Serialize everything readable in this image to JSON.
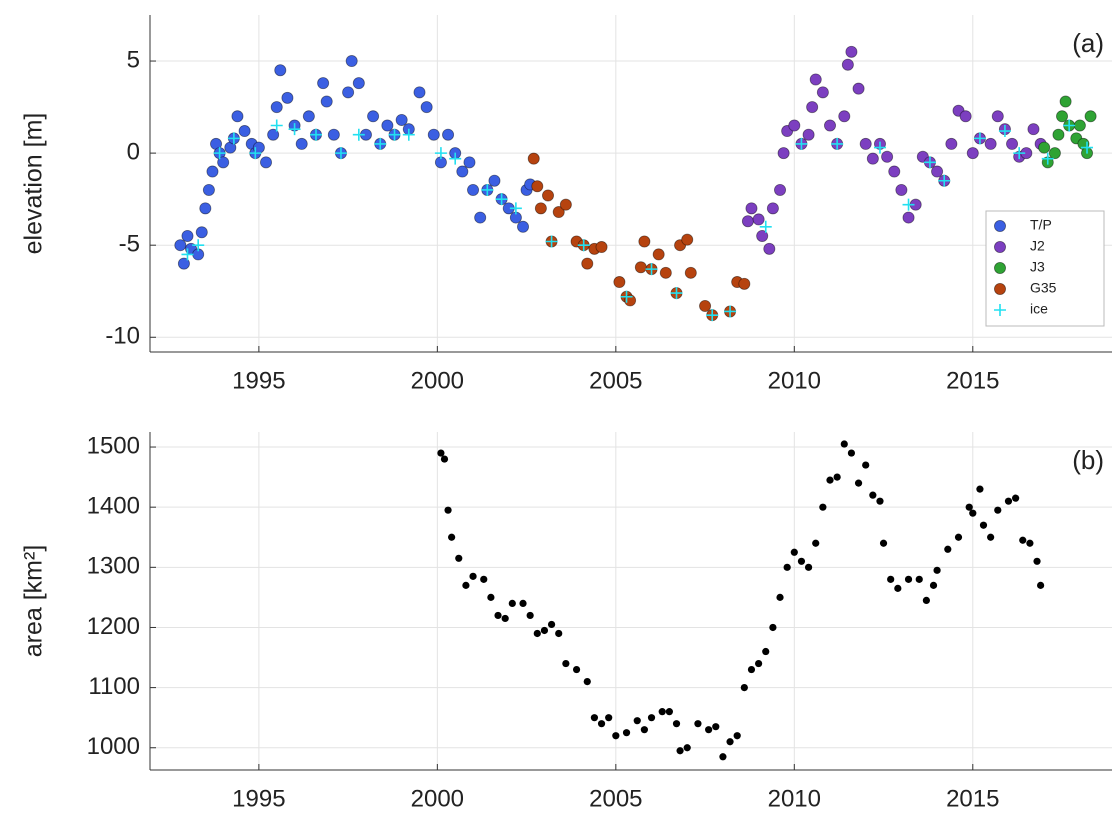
{
  "chart_data": [
    {
      "type": "scatter",
      "y_label": "elevation [m]",
      "annotation": "(a)",
      "xlim": [
        1991.95,
        2018.9
      ],
      "ylim": [
        -10.8,
        7.5
      ],
      "xticks": [
        1995,
        2000,
        2005,
        2010,
        2015
      ],
      "yticks": [
        -10,
        -5,
        0,
        5
      ],
      "grid": true,
      "legend": "lower right",
      "series": [
        {
          "name": "T/P",
          "color": "#3b5fe2",
          "marker": "circle",
          "x": [
            1992.8,
            1992.9,
            1993.0,
            1993.1,
            1993.3,
            1993.4,
            1993.5,
            1993.6,
            1993.7,
            1993.8,
            1993.9,
            1994.0,
            1994.2,
            1994.3,
            1994.4,
            1994.6,
            1994.8,
            1994.9,
            1995.0,
            1995.2,
            1995.4,
            1995.5,
            1995.6,
            1995.8,
            1996.0,
            1996.2,
            1996.4,
            1996.6,
            1996.8,
            1996.9,
            1997.1,
            1997.3,
            1997.5,
            1997.6,
            1997.8,
            1998.0,
            1998.2,
            1998.4,
            1998.6,
            1998.8,
            1999.0,
            1999.2,
            1999.5,
            1999.7,
            1999.9,
            2000.1,
            2000.3,
            2000.5,
            2000.7,
            2000.9,
            2001.0,
            2001.2,
            2001.4,
            2001.6,
            2001.8,
            2002.0,
            2002.2,
            2002.4,
            2002.5,
            2002.6
          ],
          "values": [
            -5,
            -6,
            -4.5,
            -5.2,
            -5.5,
            -4.3,
            -3,
            -2,
            -1,
            0.5,
            0,
            -0.5,
            0.3,
            0.8,
            2,
            1.2,
            0.5,
            0,
            0.3,
            -0.5,
            1,
            2.5,
            4.5,
            3,
            1.5,
            0.5,
            2,
            1,
            3.8,
            2.8,
            1,
            0,
            3.3,
            5,
            3.8,
            1,
            2,
            0.5,
            1.5,
            1,
            1.8,
            1.3,
            3.3,
            2.5,
            1,
            -0.5,
            1,
            0,
            -1,
            -0.5,
            -2,
            -3.5,
            -2,
            -1.5,
            -2.5,
            -3,
            -3.5,
            -4,
            -2,
            -1.7
          ]
        },
        {
          "name": "J2",
          "color": "#7c3fc0",
          "marker": "circle",
          "x": [
            2008.7,
            2008.8,
            2009.0,
            2009.1,
            2009.3,
            2009.4,
            2009.6,
            2009.7,
            2009.8,
            2010.0,
            2010.2,
            2010.4,
            2010.5,
            2010.6,
            2010.8,
            2011.0,
            2011.2,
            2011.4,
            2011.5,
            2011.6,
            2011.8,
            2012.0,
            2012.2,
            2012.4,
            2012.6,
            2012.8,
            2013.0,
            2013.2,
            2013.4,
            2013.6,
            2013.8,
            2014.0,
            2014.2,
            2014.4,
            2014.6,
            2014.8,
            2015.0,
            2015.2,
            2015.5,
            2015.7,
            2015.9,
            2016.1,
            2016.3,
            2016.5,
            2016.7,
            2016.9
          ],
          "values": [
            -3.7,
            -3,
            -3.6,
            -4.5,
            -5.2,
            -3,
            -2,
            0,
            1.2,
            1.5,
            0.5,
            1,
            2.5,
            4,
            3.3,
            1.5,
            0.5,
            2,
            4.8,
            5.5,
            3.5,
            0.5,
            -0.3,
            0.5,
            -0.2,
            -1,
            -2,
            -3.5,
            -2.8,
            -0.2,
            -0.5,
            -1,
            -1.5,
            0.5,
            2.3,
            2,
            0,
            0.8,
            0.5,
            2,
            1.3,
            0.5,
            -0.2,
            0,
            1.3,
            0.5
          ]
        },
        {
          "name": "J3",
          "color": "#2fa334",
          "marker": "circle",
          "x": [
            2017.0,
            2017.1,
            2017.3,
            2017.4,
            2017.5,
            2017.6,
            2017.7,
            2017.9,
            2018.0,
            2018.1,
            2018.2,
            2018.3
          ],
          "values": [
            0.3,
            -0.5,
            0,
            1,
            2,
            2.8,
            1.5,
            0.8,
            1.5,
            0.5,
            0,
            2
          ]
        },
        {
          "name": "G35",
          "color": "#b6430f",
          "marker": "circle",
          "x": [
            2002.7,
            2002.8,
            2002.9,
            2003.1,
            2003.2,
            2003.4,
            2003.6,
            2003.9,
            2004.1,
            2004.2,
            2004.4,
            2004.6,
            2005.1,
            2005.3,
            2005.4,
            2005.7,
            2005.8,
            2006.0,
            2006.2,
            2006.4,
            2006.7,
            2006.8,
            2007.0,
            2007.1,
            2007.5,
            2007.7,
            2008.2,
            2008.4,
            2008.6
          ],
          "values": [
            -0.3,
            -1.8,
            -3,
            -2.3,
            -4.8,
            -3.2,
            -2.8,
            -4.8,
            -5,
            -6,
            -5.2,
            -5.1,
            -7,
            -7.8,
            -8,
            -6.2,
            -4.8,
            -6.3,
            -5.5,
            -6.5,
            -7.6,
            -5,
            -4.7,
            -6.5,
            -8.3,
            -8.8,
            -8.6,
            -7,
            -7.1
          ]
        },
        {
          "name": "ice",
          "color": "#22e0f0",
          "marker": "plus",
          "x": [
            1993.0,
            1993.3,
            1993.9,
            1994.3,
            1994.9,
            1995.5,
            1996.0,
            1996.6,
            1997.3,
            1997.8,
            1998.4,
            1998.8,
            1999.2,
            2000.1,
            2000.5,
            2001.4,
            2001.8,
            2002.2,
            2003.2,
            2004.1,
            2005.3,
            2006.0,
            2006.7,
            2007.7,
            2008.2,
            2009.2,
            2010.2,
            2011.2,
            2012.4,
            2013.2,
            2013.8,
            2014.2,
            2015.2,
            2015.9,
            2016.3,
            2017.1,
            2017.7,
            2018.2
          ],
          "values": [
            -5.5,
            -5,
            0,
            0.8,
            0,
            1.5,
            1.3,
            1,
            0,
            1,
            0.5,
            1,
            1,
            0,
            -0.3,
            -2,
            -2.5,
            -3,
            -4.8,
            -5,
            -7.8,
            -6.3,
            -7.6,
            -8.8,
            -8.6,
            -4,
            0.5,
            0.5,
            0.3,
            -2.8,
            -0.5,
            -1.5,
            0.8,
            1.2,
            0,
            -0.3,
            1.5,
            0.3
          ]
        }
      ]
    },
    {
      "type": "scatter",
      "y_label": "area [km²]",
      "annotation": "(b)",
      "xlim": [
        1991.95,
        2018.9
      ],
      "ylim": [
        963,
        1525
      ],
      "xticks": [
        1995,
        2000,
        2005,
        2010,
        2015
      ],
      "yticks": [
        1000,
        1100,
        1200,
        1300,
        1400,
        1500
      ],
      "grid": true,
      "series": [
        {
          "color": "#000000",
          "marker": "dot",
          "x": [
            2000.1,
            2000.2,
            2000.3,
            2000.4,
            2000.6,
            2000.8,
            2001.0,
            2001.3,
            2001.5,
            2001.7,
            2001.9,
            2002.1,
            2002.4,
            2002.6,
            2002.8,
            2003.0,
            2003.2,
            2003.4,
            2003.6,
            2003.9,
            2004.2,
            2004.4,
            2004.6,
            2004.8,
            2005.0,
            2005.3,
            2005.6,
            2005.8,
            2006.0,
            2006.3,
            2006.5,
            2006.7,
            2006.8,
            2007.0,
            2007.3,
            2007.6,
            2007.8,
            2008.0,
            2008.2,
            2008.4,
            2008.6,
            2008.8,
            2009.0,
            2009.2,
            2009.4,
            2009.6,
            2009.8,
            2010.0,
            2010.2,
            2010.4,
            2010.6,
            2010.8,
            2011.0,
            2011.2,
            2011.4,
            2011.6,
            2011.8,
            2012.0,
            2012.2,
            2012.4,
            2012.5,
            2012.7,
            2012.9,
            2013.2,
            2013.5,
            2013.7,
            2013.9,
            2014.0,
            2014.3,
            2014.6,
            2014.9,
            2015.0,
            2015.2,
            2015.3,
            2015.5,
            2015.7,
            2016.0,
            2016.2,
            2016.4,
            2016.6,
            2016.8,
            2016.9
          ],
          "values": [
            1490,
            1480,
            1395,
            1350,
            1315,
            1270,
            1285,
            1280,
            1250,
            1220,
            1215,
            1240,
            1240,
            1220,
            1190,
            1195,
            1205,
            1190,
            1140,
            1130,
            1110,
            1050,
            1040,
            1050,
            1020,
            1025,
            1045,
            1030,
            1050,
            1060,
            1060,
            1040,
            995,
            1000,
            1040,
            1030,
            1035,
            985,
            1010,
            1020,
            1100,
            1130,
            1140,
            1160,
            1200,
            1250,
            1300,
            1325,
            1310,
            1300,
            1340,
            1400,
            1445,
            1450,
            1505,
            1490,
            1440,
            1470,
            1420,
            1410,
            1340,
            1280,
            1265,
            1280,
            1280,
            1245,
            1270,
            1295,
            1330,
            1350,
            1400,
            1390,
            1430,
            1370,
            1350,
            1395,
            1410,
            1415,
            1345,
            1340,
            1310,
            1270
          ]
        }
      ]
    }
  ]
}
